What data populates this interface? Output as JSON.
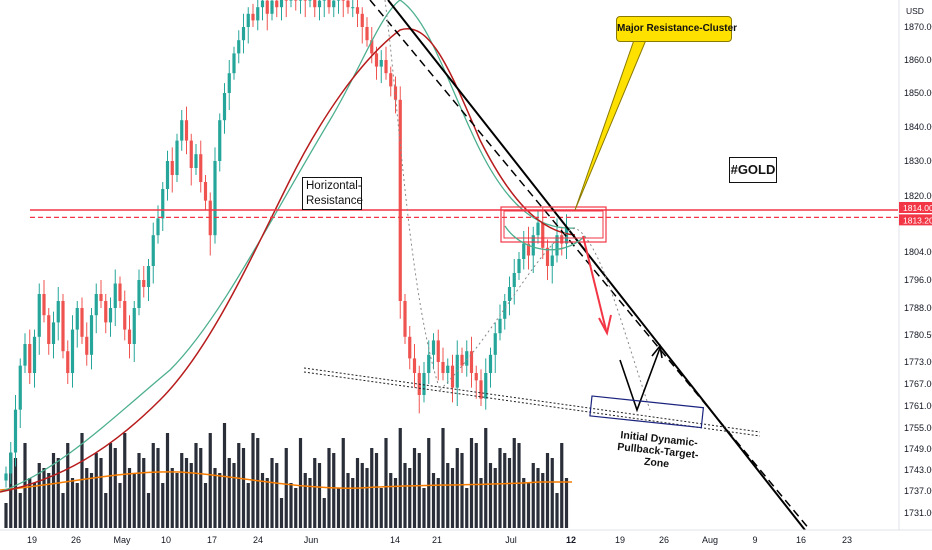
{
  "currency": "USD",
  "price_tags": [
    {
      "value": 1814.0,
      "label": "1814.00"
    },
    {
      "value": 1813.2,
      "label": "1813.20"
    }
  ],
  "annotations": {
    "horizontal_resistance": [
      "Horizontal-",
      "Resistance"
    ],
    "major_resistance": "Major Resistance-Cluster",
    "gold_tag": "#GOLD",
    "target_zone": [
      "Initial Dynamic-",
      "Pullback-Target-Zone"
    ]
  },
  "colors": {
    "up_candle": "#26a69a",
    "down_candle": "#ef5350",
    "resistance_line": "#f23645",
    "ma_slow": "#b71c1c",
    "ma_fast": "#4caf8f",
    "volume_bar": "#131722",
    "volume_ma": "#f57c00",
    "callout": "#ffe100",
    "target_box": "#1a237e"
  },
  "chart_data": {
    "type": "candlestick",
    "symbol": "#GOLD",
    "y_axis": {
      "unit": "USD",
      "ticks": [
        1870.0,
        1860.0,
        1850.0,
        1840.0,
        1830.0,
        1820.0,
        1814.0,
        1813.2,
        1804.0,
        1796.0,
        1788.0,
        1780.5,
        1773.0,
        1767.0,
        1761.0,
        1755.0,
        1749.0,
        1743.0,
        1737.0,
        1731.0
      ],
      "tick_labels": [
        "1870.00",
        "1860.00",
        "1850.00",
        "1840.00",
        "1830.00",
        "1820.00",
        "1804.00",
        "1796.00",
        "1788.00",
        "1780.50",
        "1773.00",
        "1767.00",
        "1761.00",
        "1755.00",
        "1749.00",
        "1743.00",
        "1737.00",
        "1731.00"
      ],
      "tick_values": [
        1870,
        1860,
        1850,
        1840,
        1830,
        1820,
        1804,
        1796,
        1788,
        1780.5,
        1773,
        1767,
        1761,
        1755,
        1749,
        1743,
        1737,
        1731
      ]
    },
    "x_axis": {
      "tick_labels": [
        "19",
        "26",
        "May",
        "10",
        "17",
        "24",
        "Jun",
        "14",
        "21",
        "Jul",
        "12",
        "19",
        "26",
        "Aug",
        "9",
        "16",
        "23"
      ],
      "highlighted": "12"
    },
    "resistance_level": 1813.2,
    "resistance_level_2": 1814.0
  }
}
